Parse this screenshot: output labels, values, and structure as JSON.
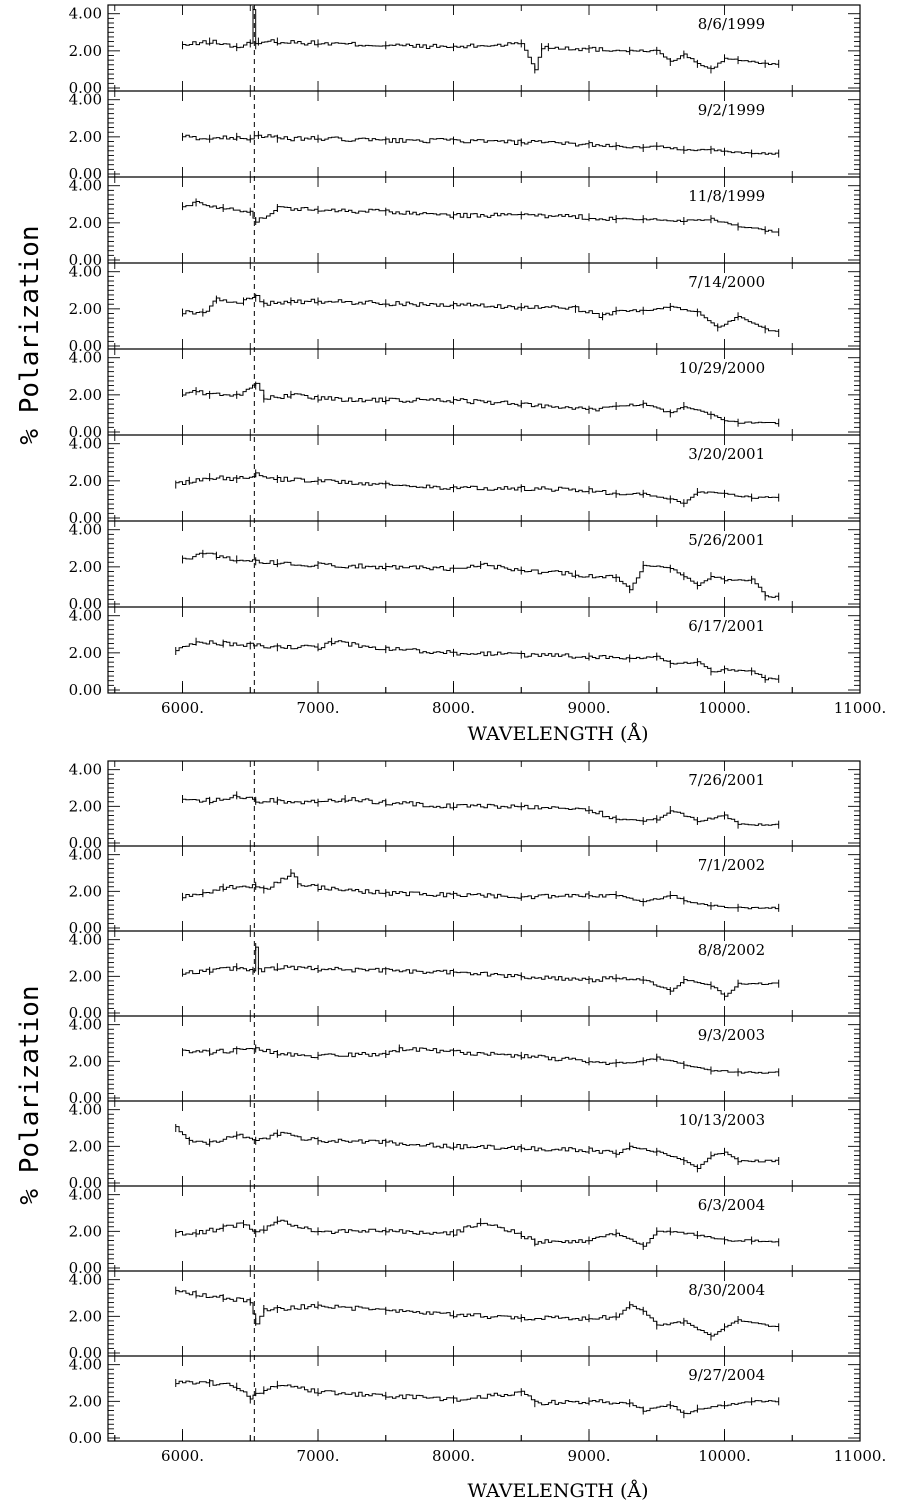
{
  "chart_data": [
    {
      "type": "line",
      "xlabel": "WAVELENGTH (Å)",
      "ylabel": "% Polarization",
      "xlim": [
        5450,
        11000
      ],
      "ylim": [
        0,
        4.2
      ],
      "x_ticks": [
        "6000.",
        "7000.",
        "8000.",
        "9000.",
        "10000.",
        "11000."
      ],
      "y_ticks": [
        "0.00",
        "2.00",
        "4.00"
      ],
      "vline_x": 6530,
      "series": [
        {
          "date": "8/6/1999",
          "x": [
            6000,
            6200,
            6400,
            6500,
            6520,
            6540,
            6560,
            6700,
            7000,
            7500,
            8000,
            8500,
            8600,
            8650,
            8700,
            9000,
            9300,
            9500,
            9600,
            9700,
            9800,
            9900,
            10000,
            10100,
            10300,
            10400
          ],
          "y": [
            2.3,
            2.5,
            2.2,
            2.4,
            4.2,
            2.3,
            2.5,
            2.5,
            2.4,
            2.3,
            2.2,
            2.4,
            1.0,
            2.2,
            2.2,
            2.1,
            2.0,
            2.0,
            1.4,
            1.8,
            1.3,
            1.0,
            1.6,
            1.5,
            1.3,
            1.3
          ]
        },
        {
          "date": "9/2/1999",
          "x": [
            6000,
            6200,
            6400,
            6500,
            6560,
            6700,
            7000,
            7500,
            8000,
            8500,
            9000,
            9200,
            9400,
            9500,
            9700,
            9900,
            10000,
            10200,
            10400
          ],
          "y": [
            2.0,
            1.9,
            2.0,
            1.9,
            2.1,
            1.9,
            1.9,
            1.8,
            1.8,
            1.7,
            1.6,
            1.5,
            1.4,
            1.5,
            1.3,
            1.3,
            1.2,
            1.1,
            1.1
          ]
        },
        {
          "date": "11/8/1999",
          "x": [
            6000,
            6100,
            6300,
            6500,
            6540,
            6700,
            7000,
            7500,
            8000,
            8500,
            9000,
            9200,
            9400,
            9700,
            9900,
            10100,
            10300,
            10400
          ],
          "y": [
            2.9,
            3.1,
            2.8,
            2.6,
            2.1,
            2.8,
            2.7,
            2.6,
            2.4,
            2.4,
            2.3,
            2.2,
            2.2,
            2.1,
            2.2,
            1.8,
            1.6,
            1.5
          ]
        },
        {
          "date": "7/14/2000",
          "x": [
            6000,
            6150,
            6250,
            6450,
            6540,
            6600,
            6800,
            7000,
            7500,
            8000,
            8500,
            8900,
            9100,
            9200,
            9400,
            9600,
            9800,
            9950,
            10100,
            10300,
            10400
          ],
          "y": [
            1.8,
            1.8,
            2.5,
            2.4,
            2.6,
            2.3,
            2.4,
            2.4,
            2.3,
            2.2,
            2.1,
            2.0,
            1.6,
            1.9,
            1.9,
            2.1,
            1.8,
            1.0,
            1.6,
            0.9,
            0.7
          ]
        },
        {
          "date": "10/29/2000",
          "x": [
            6000,
            6100,
            6200,
            6400,
            6540,
            6600,
            6800,
            7000,
            7500,
            8000,
            8500,
            9000,
            9200,
            9400,
            9600,
            9700,
            9900,
            10000,
            10100,
            10400
          ],
          "y": [
            2.1,
            2.2,
            2.0,
            2.0,
            2.5,
            1.8,
            2.0,
            1.8,
            1.7,
            1.7,
            1.5,
            1.2,
            1.4,
            1.5,
            1.0,
            1.4,
            0.9,
            0.6,
            0.5,
            0.5
          ]
        },
        {
          "date": "3/20/2001",
          "x": [
            5950,
            6050,
            6200,
            6400,
            6540,
            6700,
            7000,
            7500,
            8000,
            8500,
            9000,
            9200,
            9400,
            9600,
            9700,
            9800,
            10000,
            10200,
            10400
          ],
          "y": [
            1.8,
            2.0,
            2.2,
            2.1,
            2.4,
            2.1,
            2.0,
            1.8,
            1.6,
            1.6,
            1.5,
            1.3,
            1.3,
            1.0,
            0.8,
            1.4,
            1.3,
            1.1,
            1.1
          ]
        },
        {
          "date": "5/26/2001",
          "x": [
            6000,
            6150,
            6250,
            6400,
            6540,
            6700,
            7000,
            7500,
            8000,
            8200,
            8500,
            8900,
            9200,
            9300,
            9400,
            9600,
            9700,
            9800,
            9900,
            10000,
            10200,
            10300,
            10400
          ],
          "y": [
            2.4,
            2.7,
            2.6,
            2.4,
            2.3,
            2.2,
            2.1,
            2.0,
            1.9,
            2.1,
            1.8,
            1.6,
            1.4,
            0.8,
            2.1,
            1.9,
            1.5,
            1.0,
            1.5,
            1.3,
            1.3,
            0.4,
            0.4
          ]
        },
        {
          "date": "6/17/2001",
          "x": [
            5950,
            6100,
            6300,
            6500,
            6700,
            7000,
            7100,
            7500,
            8000,
            8500,
            9000,
            9300,
            9500,
            9600,
            9800,
            9900,
            10000,
            10200,
            10300,
            10400
          ],
          "y": [
            2.1,
            2.6,
            2.5,
            2.4,
            2.3,
            2.3,
            2.6,
            2.2,
            2.0,
            1.9,
            1.8,
            1.7,
            1.8,
            1.4,
            1.5,
            1.0,
            1.1,
            1.0,
            0.6,
            0.6
          ]
        },
        {
          "date": "7/26/2001",
          "x": [
            6000,
            6200,
            6400,
            6540,
            6700,
            7000,
            7200,
            7500,
            8000,
            8500,
            9000,
            9200,
            9400,
            9500,
            9600,
            9800,
            10000,
            10100,
            10400
          ],
          "y": [
            2.4,
            2.3,
            2.6,
            2.3,
            2.3,
            2.2,
            2.4,
            2.2,
            2.0,
            2.0,
            1.8,
            1.3,
            1.2,
            1.3,
            1.8,
            1.2,
            1.5,
            1.0,
            1.0
          ]
        },
        {
          "date": "7/1/2002",
          "x": [
            6000,
            6150,
            6300,
            6540,
            6600,
            6800,
            6850,
            7000,
            7500,
            8000,
            8500,
            9000,
            9200,
            9400,
            9600,
            9700,
            9900,
            10100,
            10400
          ],
          "y": [
            1.7,
            1.9,
            2.2,
            2.3,
            2.1,
            3.0,
            2.4,
            2.2,
            1.9,
            1.8,
            1.7,
            1.8,
            1.8,
            1.4,
            1.8,
            1.5,
            1.2,
            1.1,
            1.1
          ]
        },
        {
          "date": "8/8/2002",
          "x": [
            6000,
            6200,
            6400,
            6520,
            6540,
            6560,
            6700,
            7000,
            7500,
            8000,
            8500,
            9000,
            9200,
            9400,
            9600,
            9700,
            9900,
            10000,
            10100,
            10400
          ],
          "y": [
            2.2,
            2.3,
            2.5,
            2.3,
            3.6,
            2.3,
            2.5,
            2.4,
            2.3,
            2.2,
            2.0,
            1.8,
            1.9,
            1.8,
            1.2,
            1.8,
            1.5,
            0.9,
            1.6,
            1.6
          ]
        },
        {
          "date": "9/3/2003",
          "x": [
            6000,
            6200,
            6400,
            6540,
            6700,
            7000,
            7500,
            7600,
            8000,
            8500,
            9000,
            9200,
            9400,
            9500,
            9700,
            9900,
            10100,
            10400
          ],
          "y": [
            2.5,
            2.5,
            2.6,
            2.7,
            2.4,
            2.3,
            2.4,
            2.7,
            2.5,
            2.3,
            2.0,
            1.9,
            2.0,
            2.2,
            1.8,
            1.5,
            1.4,
            1.4
          ]
        },
        {
          "date": "10/13/2003",
          "x": [
            5950,
            6050,
            6200,
            6400,
            6540,
            6700,
            7000,
            7500,
            8000,
            8500,
            9000,
            9200,
            9300,
            9500,
            9700,
            9800,
            9900,
            10000,
            10100,
            10400
          ],
          "y": [
            3.0,
            2.3,
            2.2,
            2.6,
            2.3,
            2.7,
            2.3,
            2.2,
            2.0,
            1.9,
            1.8,
            1.6,
            2.0,
            1.7,
            1.2,
            0.8,
            1.5,
            1.7,
            1.2,
            1.2
          ]
        },
        {
          "date": "6/3/2004",
          "x": [
            5950,
            6100,
            6300,
            6450,
            6540,
            6600,
            6700,
            7000,
            7500,
            8000,
            8200,
            8500,
            8600,
            9000,
            9200,
            9400,
            9500,
            9600,
            9800,
            10000,
            10200,
            10400
          ],
          "y": [
            1.9,
            1.9,
            2.2,
            2.4,
            1.9,
            2.1,
            2.6,
            2.0,
            2.0,
            1.9,
            2.5,
            1.8,
            1.4,
            1.5,
            1.9,
            1.2,
            2.0,
            2.0,
            1.8,
            1.5,
            1.5,
            1.4
          ]
        },
        {
          "date": "8/30/2004",
          "x": [
            5950,
            6100,
            6300,
            6500,
            6540,
            6600,
            6700,
            7000,
            7500,
            8000,
            8500,
            9000,
            9200,
            9300,
            9400,
            9500,
            9700,
            9900,
            10000,
            10100,
            10400
          ],
          "y": [
            3.4,
            3.2,
            3.0,
            2.8,
            1.7,
            2.4,
            2.4,
            2.6,
            2.3,
            2.1,
            1.9,
            1.9,
            2.0,
            2.6,
            2.3,
            1.5,
            1.7,
            0.9,
            1.4,
            1.8,
            1.4
          ]
        },
        {
          "date": "9/27/2004",
          "x": [
            5950,
            6200,
            6400,
            6500,
            6540,
            6600,
            6700,
            7000,
            7500,
            8000,
            8500,
            8600,
            9000,
            9300,
            9400,
            9600,
            9700,
            9800,
            10000,
            10200,
            10400
          ],
          "y": [
            3.0,
            3.0,
            2.8,
            2.1,
            2.5,
            2.6,
            2.9,
            2.5,
            2.3,
            2.1,
            2.5,
            1.9,
            2.0,
            1.9,
            1.5,
            1.8,
            1.3,
            1.6,
            1.8,
            2.0,
            2.0
          ]
        }
      ]
    }
  ],
  "colors": {
    "line": "#000000",
    "background": "#ffffff"
  }
}
